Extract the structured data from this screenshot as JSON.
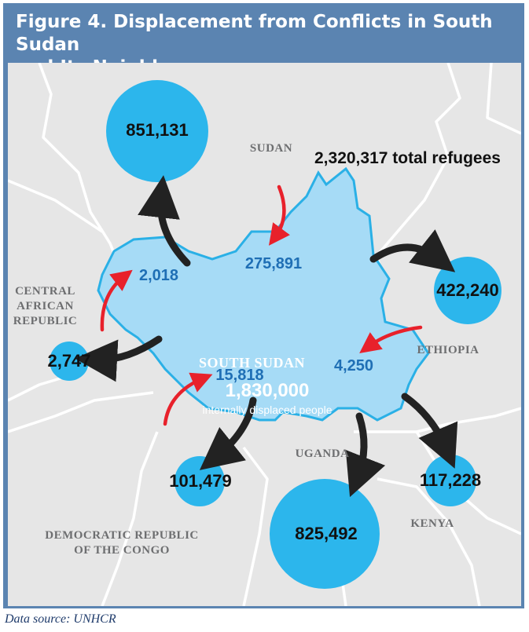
{
  "title_line1": "Figure 4. Displacement from Conflicts in South Sudan",
  "title_line2": "and Its Neighbors",
  "total_refugees": "2,320,317 total refugees",
  "countries": {
    "sudan": "SUDAN",
    "car_line1": "CENTRAL",
    "car_line2": "AFRICAN",
    "car_line3": "REPUBLIC",
    "ethiopia": "ETHIOPIA",
    "uganda": "UGANDA",
    "kenya": "KENYA",
    "drc_line1": "DEMOCRATIC REPUBLIC",
    "drc_line2": "OF THE CONGO",
    "south_sudan": "SOUTH SUDAN"
  },
  "outflows": {
    "sudan": "851,131",
    "ethiopia": "422,240",
    "car": "2,747",
    "drc": "101,479",
    "uganda": "825,492",
    "kenya": "117,228"
  },
  "inflows": {
    "from_sudan": "275,891",
    "from_car": "2,018",
    "from_drc": "15,818",
    "from_ethiopia": "4,250"
  },
  "idp": {
    "value": "1,830,000",
    "label": "internally displaced people"
  },
  "source_text": "Data source: UNHCR",
  "colors": {
    "frame": "#5b84b1",
    "map_bg": "#e6e6e6",
    "south_sudan_fill": "#a6dbf6",
    "south_sudan_border": "#2ab0e6",
    "circle": "#2cb6ec",
    "outflow_arrow": "#222222",
    "inflow_arrow": "#e8212b",
    "inflow_text": "#1f6fb5"
  }
}
